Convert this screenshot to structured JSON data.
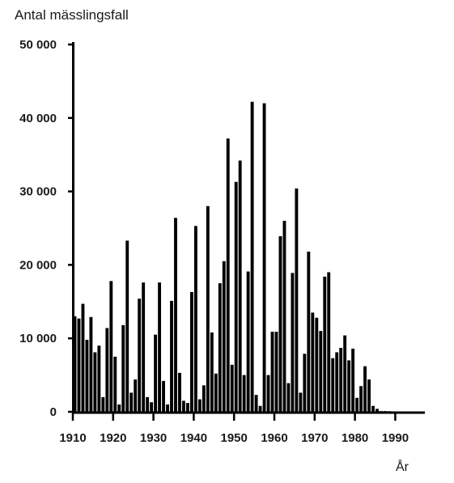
{
  "chart_data": {
    "type": "bar",
    "title": "",
    "ylabel": "Antal mässlingsfall",
    "xlabel": "År",
    "ylim": [
      0,
      50000
    ],
    "xlim": [
      1910,
      1997
    ],
    "yticks": [
      "0",
      "10 000",
      "20 000",
      "30 000",
      "40 000",
      "50 000"
    ],
    "ytick_values": [
      0,
      10000,
      20000,
      30000,
      40000,
      50000
    ],
    "xticks": [
      "1910",
      "1920",
      "1930",
      "1940",
      "1950",
      "1960",
      "1970",
      "1980",
      "1990"
    ],
    "xtick_values": [
      1910,
      1920,
      1930,
      1940,
      1950,
      1960,
      1970,
      1980,
      1990
    ],
    "grid": false,
    "color": "#000000",
    "years": [
      1910,
      1911,
      1912,
      1913,
      1914,
      1915,
      1916,
      1917,
      1918,
      1919,
      1920,
      1921,
      1922,
      1923,
      1924,
      1925,
      1926,
      1927,
      1928,
      1929,
      1930,
      1931,
      1932,
      1933,
      1934,
      1935,
      1936,
      1937,
      1938,
      1939,
      1940,
      1941,
      1942,
      1943,
      1944,
      1945,
      1946,
      1947,
      1948,
      1949,
      1950,
      1951,
      1952,
      1953,
      1954,
      1955,
      1956,
      1957,
      1958,
      1959,
      1960,
      1961,
      1962,
      1963,
      1964,
      1965,
      1966,
      1967,
      1968,
      1969,
      1970,
      1971,
      1972,
      1973,
      1974,
      1975,
      1976,
      1977,
      1978,
      1979,
      1980,
      1981,
      1982,
      1983,
      1984,
      1985,
      1986,
      1987,
      1988,
      1989,
      1990,
      1991,
      1992,
      1993,
      1994,
      1995,
      1996
    ],
    "values": [
      13000,
      12700,
      14700,
      9800,
      12900,
      8100,
      9000,
      2000,
      11400,
      17800,
      7500,
      1000,
      11800,
      23300,
      2600,
      4400,
      15400,
      17600,
      2000,
      1300,
      10500,
      17600,
      4200,
      1000,
      15100,
      26400,
      5300,
      1500,
      1200,
      16300,
      25300,
      1700,
      3600,
      28000,
      10800,
      5200,
      17500,
      20500,
      37200,
      6400,
      31300,
      34200,
      5000,
      19100,
      42200,
      2300,
      800,
      42000,
      5000,
      10900,
      10900,
      23900,
      26000,
      3900,
      18900,
      30400,
      2600,
      7900,
      21800,
      13500,
      12800,
      11000,
      18400,
      19000,
      7300,
      8100,
      8700,
      10400,
      7000,
      8600,
      1900,
      3500,
      6200,
      4400,
      800,
      400,
      100,
      100,
      80,
      60,
      50,
      50,
      40,
      30,
      30,
      30,
      20
    ]
  }
}
